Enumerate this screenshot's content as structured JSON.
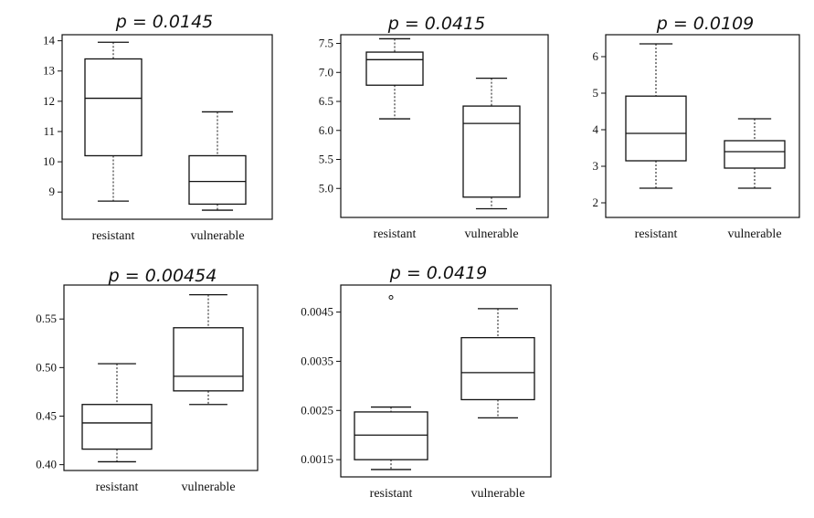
{
  "chart_data": [
    {
      "type": "box",
      "title": "p = 0.0145",
      "ylabel": "",
      "categories": [
        "resistant",
        "vulnerable"
      ],
      "ylim": [
        8.1,
        14.2
      ],
      "yticks": [
        9,
        10,
        11,
        12,
        13,
        14
      ],
      "boxes": [
        {
          "name": "resistant",
          "whisker_low": 8.7,
          "q1": 10.2,
          "median": 12.1,
          "q3": 13.4,
          "whisker_high": 13.95,
          "outliers": []
        },
        {
          "name": "vulnerable",
          "whisker_low": 8.4,
          "q1": 8.6,
          "median": 9.35,
          "q3": 10.2,
          "whisker_high": 11.65,
          "outliers": []
        }
      ]
    },
    {
      "type": "box",
      "title": "p = 0.0415",
      "ylabel": "",
      "categories": [
        "resistant",
        "vulnerable"
      ],
      "ylim": [
        4.5,
        7.65
      ],
      "yticks": [
        5.0,
        5.5,
        6.0,
        6.5,
        7.0,
        7.5
      ],
      "tick_labels": [
        "5.0",
        "5.5",
        "6.0",
        "6.5",
        "7.0",
        "7.5"
      ],
      "boxes": [
        {
          "name": "resistant",
          "whisker_low": 6.2,
          "q1": 6.78,
          "median": 7.22,
          "q3": 7.35,
          "whisker_high": 7.58,
          "outliers": []
        },
        {
          "name": "vulnerable",
          "whisker_low": 4.65,
          "q1": 4.85,
          "median": 6.12,
          "q3": 6.42,
          "whisker_high": 6.9,
          "outliers": []
        }
      ]
    },
    {
      "type": "box",
      "title": "p = 0.0109",
      "ylabel": "",
      "categories": [
        "resistant",
        "vulnerable"
      ],
      "ylim": [
        1.6,
        6.6
      ],
      "yticks": [
        2,
        3,
        4,
        5,
        6
      ],
      "boxes": [
        {
          "name": "resistant",
          "whisker_low": 2.4,
          "q1": 3.15,
          "median": 3.9,
          "q3": 4.92,
          "whisker_high": 6.35,
          "outliers": []
        },
        {
          "name": "vulnerable",
          "whisker_low": 2.4,
          "q1": 2.95,
          "median": 3.4,
          "q3": 3.7,
          "whisker_high": 4.3,
          "outliers": []
        }
      ]
    },
    {
      "type": "box",
      "title": "p =  0.00454",
      "ylabel": "",
      "categories": [
        "resistant",
        "vulnerable"
      ],
      "ylim": [
        0.394,
        0.585
      ],
      "yticks": [
        0.4,
        0.45,
        0.5,
        0.55
      ],
      "tick_labels": [
        "0.40",
        "0.45",
        "0.50",
        "0.55"
      ],
      "boxes": [
        {
          "name": "resistant",
          "whisker_low": 0.403,
          "q1": 0.416,
          "median": 0.443,
          "q3": 0.462,
          "whisker_high": 0.504,
          "outliers": []
        },
        {
          "name": "vulnerable",
          "whisker_low": 0.462,
          "q1": 0.476,
          "median": 0.491,
          "q3": 0.541,
          "whisker_high": 0.575,
          "outliers": []
        }
      ]
    },
    {
      "type": "box",
      "title": "p = 0.0419",
      "ylabel": "",
      "categories": [
        "resistant",
        "vulnerable"
      ],
      "ylim": [
        0.00115,
        0.00505
      ],
      "yticks": [
        0.0015,
        0.0025,
        0.0035,
        0.0045
      ],
      "tick_labels": [
        "0.0015",
        "0.0025",
        "0.0035",
        "0.0045"
      ],
      "boxes": [
        {
          "name": "resistant",
          "whisker_low": 0.0013,
          "q1": 0.0015,
          "median": 0.002,
          "q3": 0.00247,
          "whisker_high": 0.00257,
          "outliers": [
            0.0048
          ]
        },
        {
          "name": "vulnerable",
          "whisker_low": 0.00235,
          "q1": 0.00272,
          "median": 0.00327,
          "q3": 0.00398,
          "whisker_high": 0.00457,
          "outliers": []
        }
      ]
    }
  ]
}
